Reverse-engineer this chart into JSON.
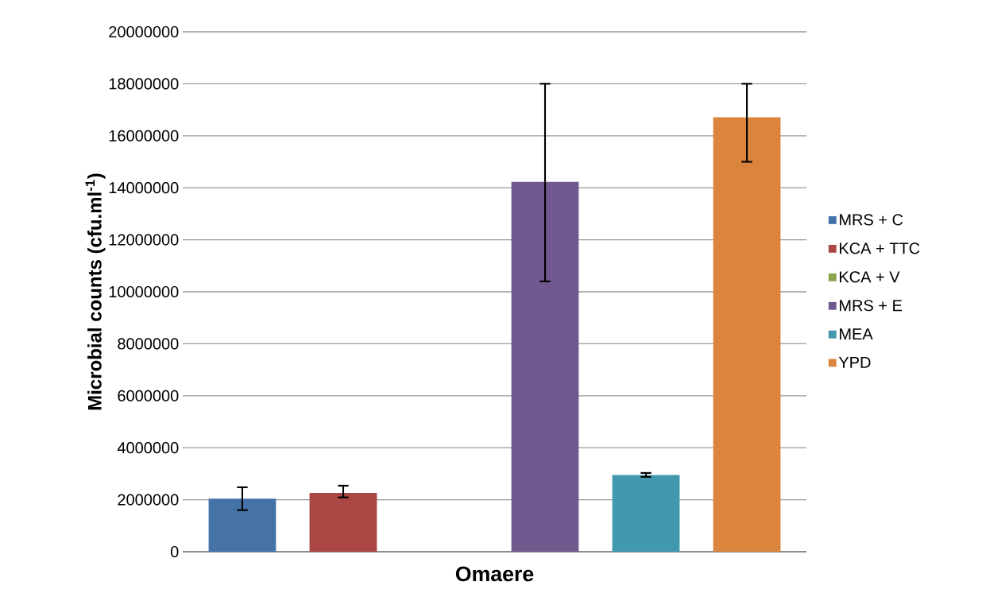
{
  "chart_data": {
    "type": "bar",
    "categories": [
      "Omaere"
    ],
    "ylabel": "Microbial counts (cfu.ml$^{-1}$)",
    "ylim": [
      0,
      20000000
    ],
    "yticks": [
      0,
      2000000,
      4000000,
      6000000,
      8000000,
      10000000,
      12000000,
      14000000,
      16000000,
      18000000,
      20000000
    ],
    "grid": "y",
    "legend": "right",
    "series": [
      {
        "name": "MRS + C",
        "color": "#4572a7",
        "values": [
          2040000
        ],
        "errors": [
          [
            1600000,
            2480000
          ]
        ]
      },
      {
        "name": "KCA + TTC",
        "color": "#aa4643",
        "values": [
          2260000
        ],
        "errors": [
          [
            2090000,
            2540000
          ]
        ]
      },
      {
        "name": "KCA + V",
        "color": "#89a54e",
        "values": [
          0
        ],
        "errors": [
          null
        ]
      },
      {
        "name": "MRS + E",
        "color": "#71588f",
        "values": [
          14230000
        ],
        "errors": [
          [
            10400000,
            18000000
          ]
        ]
      },
      {
        "name": "MEA",
        "color": "#4198af",
        "values": [
          2950000
        ],
        "errors": [
          [
            2880000,
            3030000
          ]
        ]
      },
      {
        "name": "YPD",
        "color": "#db843d",
        "values": [
          16710000
        ],
        "errors": [
          [
            15000000,
            18000000
          ]
        ]
      }
    ]
  }
}
